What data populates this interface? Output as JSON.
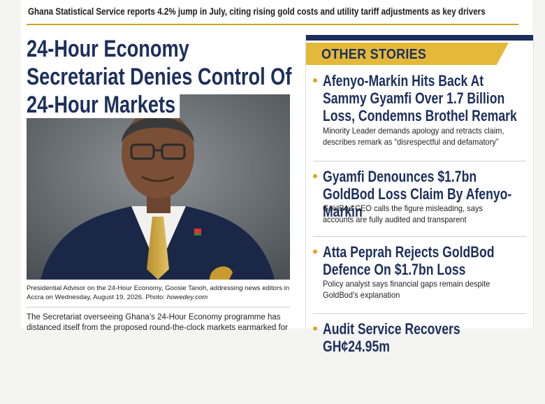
{
  "ticker": "Ghana Statistical Service reports 4.2% jump in July, citing rising gold costs and utility tariff adjustments as key drivers",
  "main_story": {
    "headline": "24-Hour Economy Secretariat Denies Control Of 24-Hour Markets",
    "caption": "Presidential Advisor on the 24-Hour Economy, Goosie Tanoh, addressing news editors in Accra on Wednesday, August 19, 2026. Photo:",
    "photo_credit": "howedey.com",
    "body": "The Secretariat overseeing Ghana’s 24-Hour Economy programme has distanced itself from the proposed round-the-clock markets earmarked for"
  },
  "sidebar": {
    "title": "OTHER STORIES",
    "stories": [
      {
        "headline": "Afenyo-Markin Hits Back At Sammy Gyamfi Over 1.7 Billion Loss, Condemns Brothel Remark",
        "summary": "Minority Leader demands apology and retracts claim, describes remark as “disrespectful and defamatory”"
      },
      {
        "headline": "Gyamfi Denounces $1.7bn GoldBod Loss Claim By Afenyo-Markin",
        "summary": "GoldBod CEO calls the figure misleading, says accounts are fully audited and transparent"
      },
      {
        "headline": "Atta Peprah Rejects GoldBod Defence On $1.7bn Loss",
        "summary": "Policy analyst says financial gaps remain despite GoldBod’s explanation"
      },
      {
        "headline": "Audit Service Recovers GH¢24.95m"
      }
    ]
  }
}
